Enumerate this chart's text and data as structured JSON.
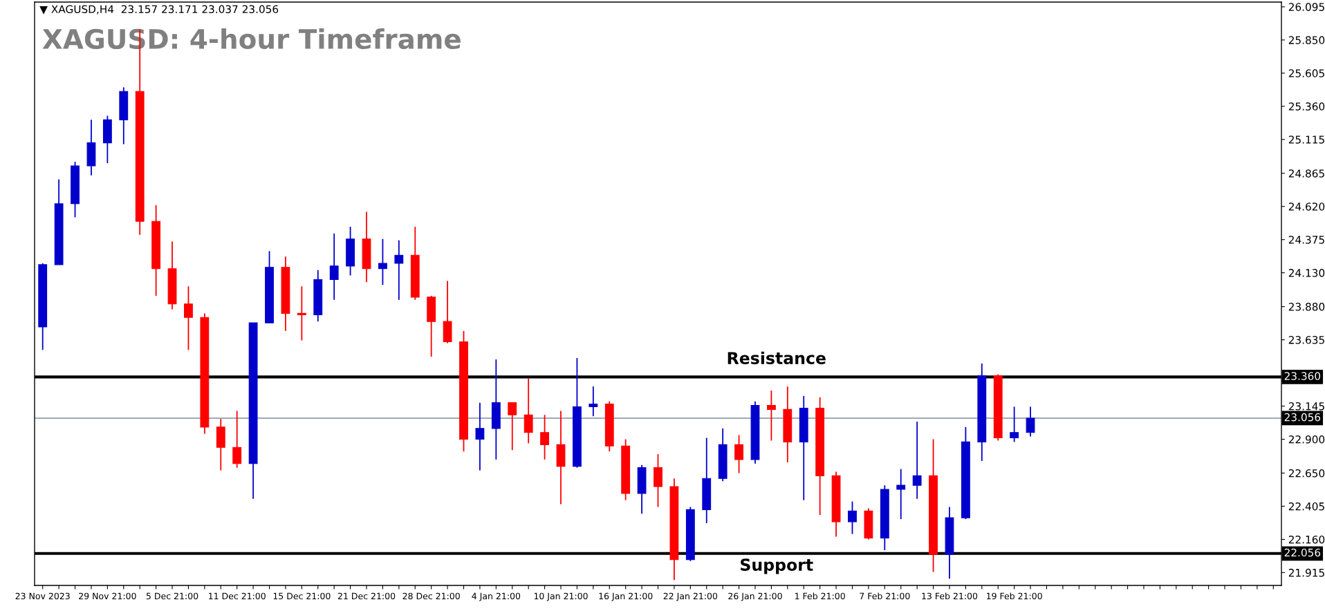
{
  "chart_data": {
    "type": "candlestick",
    "title": "XAGUSD: 4-hour Timeframe",
    "annotations": [
      "▼ XAGUSD,H4  23.157 23.171 23.037 23.056",
      {
        "text": "Resistance",
        "y": 23.36
      },
      {
        "text": "Support",
        "y": 22.056
      }
    ],
    "categories": [
      "23 Nov 2023",
      null,
      null,
      null,
      "29 Nov 21:00",
      null,
      null,
      null,
      "5 Dec 21:00",
      null,
      null,
      null,
      "11 Dec 21:00",
      null,
      null,
      null,
      "15 Dec 21:00",
      null,
      null,
      null,
      "21 Dec 21:00",
      null,
      null,
      null,
      "28 Dec 21:00",
      null,
      null,
      null,
      "4 Jan 21:00",
      null,
      null,
      null,
      "10 Jan 21:00",
      null,
      null,
      null,
      "16 Jan 21:00",
      null,
      null,
      null,
      "22 Jan 21:00",
      null,
      null,
      null,
      "26 Jan 21:00",
      null,
      null,
      null,
      "1 Feb 21:00",
      null,
      null,
      null,
      "7 Feb 21:00",
      null,
      null,
      null,
      "13 Feb 21:00",
      null,
      null,
      null,
      "19 Feb 21:00",
      null,
      null,
      null,
      null,
      null,
      null,
      null,
      null,
      null,
      null,
      null,
      null,
      null,
      null,
      null,
      null
    ],
    "ohlc": [
      [
        23.73,
        24.2,
        23.56,
        24.19
      ],
      [
        24.19,
        24.82,
        24.19,
        24.64
      ],
      [
        24.64,
        24.95,
        24.54,
        24.92
      ],
      [
        24.92,
        25.26,
        24.85,
        25.09
      ],
      [
        25.09,
        25.29,
        24.94,
        25.26
      ],
      [
        25.26,
        25.5,
        25.08,
        25.47
      ],
      [
        25.47,
        25.93,
        24.41,
        24.51
      ],
      [
        24.51,
        24.63,
        23.96,
        24.16
      ],
      [
        24.16,
        24.36,
        23.86,
        23.9
      ],
      [
        23.9,
        24.03,
        23.56,
        23.8
      ],
      [
        23.8,
        23.83,
        22.94,
        22.99
      ],
      [
        22.99,
        23.05,
        22.67,
        22.84
      ],
      [
        22.84,
        23.11,
        22.69,
        22.72
      ],
      [
        22.72,
        23.76,
        22.46,
        23.76
      ],
      [
        23.76,
        24.29,
        23.76,
        24.17
      ],
      [
        24.17,
        24.25,
        23.7,
        23.83
      ],
      [
        23.83,
        24.03,
        23.63,
        23.82
      ],
      [
        23.82,
        24.15,
        23.77,
        24.08
      ],
      [
        24.08,
        24.42,
        23.93,
        24.18
      ],
      [
        24.18,
        24.47,
        24.11,
        24.38
      ],
      [
        24.38,
        24.58,
        24.06,
        24.16
      ],
      [
        24.16,
        24.38,
        24.04,
        24.2
      ],
      [
        24.2,
        24.37,
        23.93,
        24.26
      ],
      [
        24.26,
        24.47,
        23.93,
        23.95
      ],
      [
        23.95,
        23.96,
        23.51,
        23.77
      ],
      [
        23.77,
        24.07,
        23.61,
        23.62
      ],
      [
        23.62,
        23.7,
        22.81,
        22.9
      ],
      [
        22.9,
        23.17,
        22.67,
        22.98
      ],
      [
        22.98,
        23.49,
        22.75,
        23.17
      ],
      [
        23.17,
        23.17,
        22.82,
        23.08
      ],
      [
        23.08,
        23.35,
        22.87,
        22.95
      ],
      [
        22.95,
        23.08,
        22.75,
        22.86
      ],
      [
        22.86,
        23.11,
        22.42,
        22.7
      ],
      [
        22.7,
        23.5,
        22.69,
        23.14
      ],
      [
        23.14,
        23.29,
        23.07,
        23.16
      ],
      [
        23.16,
        23.18,
        22.81,
        22.85
      ],
      [
        22.85,
        22.9,
        22.45,
        22.5
      ],
      [
        22.5,
        22.71,
        22.35,
        22.69
      ],
      [
        22.69,
        22.79,
        22.4,
        22.55
      ],
      [
        22.55,
        22.61,
        21.86,
        22.01
      ],
      [
        22.01,
        22.4,
        22.0,
        22.38
      ],
      [
        22.38,
        22.91,
        22.28,
        22.61
      ],
      [
        22.61,
        22.98,
        22.59,
        22.86
      ],
      [
        22.86,
        22.93,
        22.65,
        22.75
      ],
      [
        22.75,
        23.18,
        22.72,
        23.15
      ],
      [
        23.15,
        23.26,
        22.89,
        23.12
      ],
      [
        23.12,
        23.29,
        22.73,
        22.88
      ],
      [
        22.88,
        23.22,
        22.45,
        23.13
      ],
      [
        23.13,
        23.21,
        22.34,
        22.63
      ],
      [
        22.63,
        22.66,
        22.18,
        22.29
      ],
      [
        22.29,
        22.44,
        22.2,
        22.37
      ],
      [
        22.37,
        22.39,
        22.16,
        22.17
      ],
      [
        22.17,
        22.56,
        22.08,
        22.53
      ],
      [
        22.53,
        22.68,
        22.31,
        22.56
      ],
      [
        22.56,
        23.03,
        22.46,
        22.63
      ],
      [
        22.63,
        22.9,
        21.92,
        22.05
      ],
      [
        22.05,
        22.4,
        21.87,
        22.32
      ],
      [
        22.32,
        22.99,
        22.31,
        22.88
      ],
      [
        22.88,
        23.46,
        22.74,
        23.37
      ],
      [
        23.37,
        23.38,
        22.89,
        22.91
      ],
      [
        22.91,
        23.14,
        22.88,
        22.95
      ],
      [
        22.95,
        23.14,
        22.92,
        23.056
      ],
      null,
      null,
      null,
      null,
      null,
      null,
      null,
      null,
      null,
      null,
      null,
      null,
      null,
      null,
      null
    ],
    "colors": [
      "#0000cc",
      "#0000cc",
      "#0000cc",
      "#0000cc",
      "#0000cc",
      "#0000cc",
      "#ff0000",
      "#ff0000",
      "#ff0000",
      "#ff0000",
      "#ff0000",
      "#ff0000",
      "#ff0000",
      "#0000cc",
      "#0000cc",
      "#ff0000",
      "#ff0000",
      "#0000cc",
      "#0000cc",
      "#0000cc",
      "#ff0000",
      "#0000cc",
      "#0000cc",
      "#ff0000",
      "#ff0000",
      "#ff0000",
      "#ff0000",
      "#0000cc",
      "#0000cc",
      "#ff0000",
      "#ff0000",
      "#ff0000",
      "#ff0000",
      "#0000cc",
      "#0000cc",
      "#ff0000",
      "#ff0000",
      "#0000cc",
      "#ff0000",
      "#ff0000",
      "#0000cc",
      "#0000cc",
      "#0000cc",
      "#ff0000",
      "#0000cc",
      "#ff0000",
      "#ff0000",
      "#0000cc",
      "#ff0000",
      "#ff0000",
      "#0000cc",
      "#ff0000",
      "#0000cc",
      "#0000cc",
      "#0000cc",
      "#ff0000",
      "#0000cc",
      "#0000cc",
      "#0000cc",
      "#ff0000",
      "#0000cc",
      "#0000cc",
      null,
      null,
      null,
      null,
      null,
      null,
      null,
      null,
      null,
      null,
      null,
      null,
      null,
      null,
      null
    ],
    "ylim": [
      21.82,
      26.13
    ],
    "yticks": [
      {
        "value": 26.095,
        "label": "26.095"
      },
      {
        "value": 25.85,
        "label": "25.850"
      },
      {
        "value": 25.605,
        "label": "25.605"
      },
      {
        "value": 25.36,
        "label": "25.360"
      },
      {
        "value": 25.115,
        "label": "25.115"
      },
      {
        "value": 24.865,
        "label": "24.865"
      },
      {
        "value": 24.62,
        "label": "24.620"
      },
      {
        "value": 24.375,
        "label": "24.375"
      },
      {
        "value": 24.13,
        "label": "24.130"
      },
      {
        "value": 23.88,
        "label": "23.880"
      },
      {
        "value": 23.635,
        "label": "23.635"
      },
      {
        "value": 23.145,
        "label": "23.145"
      },
      {
        "value": 22.9,
        "label": "22.900"
      },
      {
        "value": 22.65,
        "label": "22.650"
      },
      {
        "value": 22.405,
        "label": "22.405"
      },
      {
        "value": 22.16,
        "label": "22.160"
      },
      {
        "value": 21.915,
        "label": "21.915"
      }
    ],
    "ref_lines": [
      {
        "axis": "y",
        "value": 23.36,
        "label": "23.360",
        "color": "#000000"
      },
      {
        "axis": "y",
        "value": 22.056,
        "label": "22.056",
        "color": "#000000"
      },
      {
        "axis": "y",
        "value": 23.056,
        "label": "23.056",
        "color": "#7f8c9c"
      }
    ],
    "grid": false
  }
}
